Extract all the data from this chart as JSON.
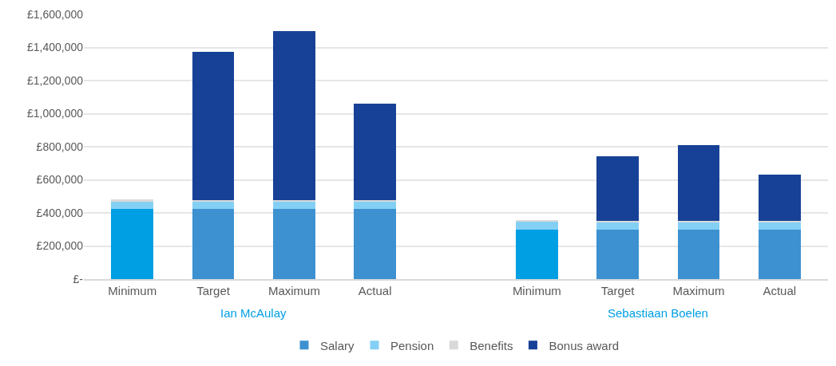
{
  "chart_data": {
    "type": "bar",
    "stacked": true,
    "categories": [
      "Minimum",
      "Target",
      "Maximum",
      "Actual",
      null,
      "Minimum",
      "Target",
      "Maximum",
      "Actual"
    ],
    "series": [
      {
        "name": "Salary",
        "color": "#3d91d0",
        "colors": [
          "#009fe3",
          "#3d91d0",
          "#3d91d0",
          "#3d91d0",
          "#3d91d0",
          "#009fe3",
          "#3d91d0",
          "#3d91d0",
          "#3d91d0"
        ],
        "values": [
          423000,
          425000,
          425000,
          425000,
          null,
          300000,
          300000,
          300000,
          300000
        ]
      },
      {
        "name": "Pension",
        "color": "#84d0f5",
        "values": [
          45000,
          47000,
          47000,
          45000,
          null,
          45000,
          45000,
          45000,
          45000
        ]
      },
      {
        "name": "Benefits",
        "color": "#d9d9d9",
        "values": [
          12000,
          3000,
          3000,
          8000,
          null,
          14000,
          5000,
          5000,
          5000
        ]
      },
      {
        "name": "Bonus award",
        "color": "#174196",
        "values": [
          null,
          900000,
          1025000,
          583000,
          null,
          null,
          394000,
          462000,
          281000
        ]
      }
    ],
    "ylim": [
      0,
      1600000
    ],
    "yticks": [
      {
        "value": 0,
        "label": "£-"
      },
      {
        "value": 200000,
        "label": "£200,000"
      },
      {
        "value": 400000,
        "label": "£400,000"
      },
      {
        "value": 600000,
        "label": "£600,000"
      },
      {
        "value": 800000,
        "label": "£800,000"
      },
      {
        "value": 1000000,
        "label": "£1,000,000"
      },
      {
        "value": 1200000,
        "label": "£1,200,000"
      },
      {
        "value": 1400000,
        "label": "£1,400,000"
      },
      {
        "value": 1600000,
        "label": "£1,600,000"
      }
    ],
    "grid": "y",
    "legend": "bottom",
    "annotations": [
      "Ian McAulay",
      "Sebastiaan Boelen"
    ]
  }
}
